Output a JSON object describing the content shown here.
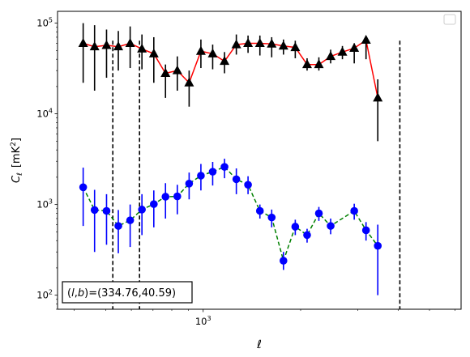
{
  "chart_data": {
    "type": "scatter",
    "xlabel": "ℓ",
    "ylabel_main": "C",
    "ylabel_sub": "ℓ",
    "ylabel_unit": "[mK",
    "ylabel_unit_sup": "2",
    "ylabel_unit_close": "]",
    "xscale": "log",
    "yscale": "log",
    "xlim": [
      355,
      6260
    ],
    "ylim": [
      70,
      135000
    ],
    "x_major_ticks": [
      {
        "value": 1000,
        "base": "10",
        "exp": "3"
      }
    ],
    "y_major_ticks": [
      {
        "value": 100,
        "base": "10",
        "exp": "2"
      },
      {
        "value": 1000,
        "base": "10",
        "exp": "3"
      },
      {
        "value": 10000,
        "base": "10",
        "exp": "4"
      },
      {
        "value": 100000,
        "base": "10",
        "exp": "5"
      }
    ],
    "vlines": [
      526,
      636,
      4050
    ],
    "x": [
      426,
      462,
      503,
      547,
      595,
      647,
      704,
      765,
      832,
      905,
      984,
      1070,
      1164,
      1266,
      1376,
      1497,
      1628,
      1770,
      1925,
      2094,
      2277,
      2476,
      2692,
      2928,
      3184,
      3462,
      3765,
      4094,
      4452,
      4842,
      5265
    ],
    "series": [
      {
        "name": "",
        "color": "#ff0000",
        "marker": "triangle",
        "marker_color": "#000000",
        "errbar_color": "#000000",
        "line_style": "solid",
        "y": [
          60000,
          55000,
          57000,
          55000,
          60000,
          52000,
          46000,
          28000,
          30000,
          22000,
          49000,
          46000,
          38000,
          58000,
          60000,
          60000,
          59000,
          56000,
          54000,
          35000,
          35000,
          43000,
          48000,
          53000,
          65000,
          15000
        ],
        "x_index": [
          0,
          1,
          2,
          3,
          4,
          5,
          6,
          7,
          8,
          9,
          10,
          11,
          12,
          13,
          14,
          15,
          16,
          17,
          18,
          19,
          20,
          21,
          22,
          23,
          24,
          25
        ],
        "err_low": [
          22000,
          18000,
          25000,
          30000,
          32000,
          31000,
          22000,
          15000,
          18000,
          12000,
          32000,
          31000,
          28000,
          45000,
          47000,
          44000,
          42000,
          45000,
          41000,
          30000,
          30000,
          36000,
          40000,
          36000,
          40000,
          5000
        ],
        "err_high": [
          100000,
          95000,
          85000,
          82000,
          92000,
          75000,
          70000,
          35000,
          43000,
          30000,
          66000,
          58000,
          48000,
          75000,
          73000,
          73000,
          70000,
          66000,
          64000,
          41000,
          42000,
          51000,
          56000,
          60000,
          72000,
          24000
        ]
      },
      {
        "name": "",
        "color": "#008000",
        "marker": "circle",
        "marker_color": "#0000ff",
        "errbar_color": "#0000ff",
        "line_style": "dashed",
        "y": [
          1550,
          870,
          850,
          580,
          670,
          880,
          1010,
          1220,
          1230,
          1700,
          2080,
          2300,
          2600,
          1900,
          1650,
          850,
          720,
          240,
          570,
          460,
          800,
          580,
          850,
          520,
          350
        ],
        "x_index": [
          0,
          1,
          2,
          3,
          4,
          5,
          6,
          7,
          8,
          9,
          10,
          11,
          12,
          13,
          14,
          15,
          16,
          17,
          18,
          19,
          20,
          21,
          23,
          24,
          25
        ],
        "err_low": [
          580,
          300,
          360,
          290,
          340,
          460,
          560,
          700,
          780,
          1140,
          1430,
          1620,
          1950,
          1300,
          1300,
          700,
          560,
          190,
          460,
          380,
          660,
          470,
          680,
          400,
          100
        ],
        "err_high": [
          2550,
          1450,
          1300,
          870,
          1000,
          1300,
          1430,
          1720,
          1650,
          2250,
          2800,
          2950,
          3200,
          2500,
          2050,
          1000,
          880,
          300,
          680,
          540,
          940,
          700,
          1020,
          640,
          600
        ]
      }
    ],
    "annotation": "(l,b)=(334.76,40.59)",
    "annotation_parts": {
      "l": "l",
      "b": "b",
      "values": "=(334.76,40.59)"
    },
    "legend_placement": "top-right",
    "grid": false
  }
}
